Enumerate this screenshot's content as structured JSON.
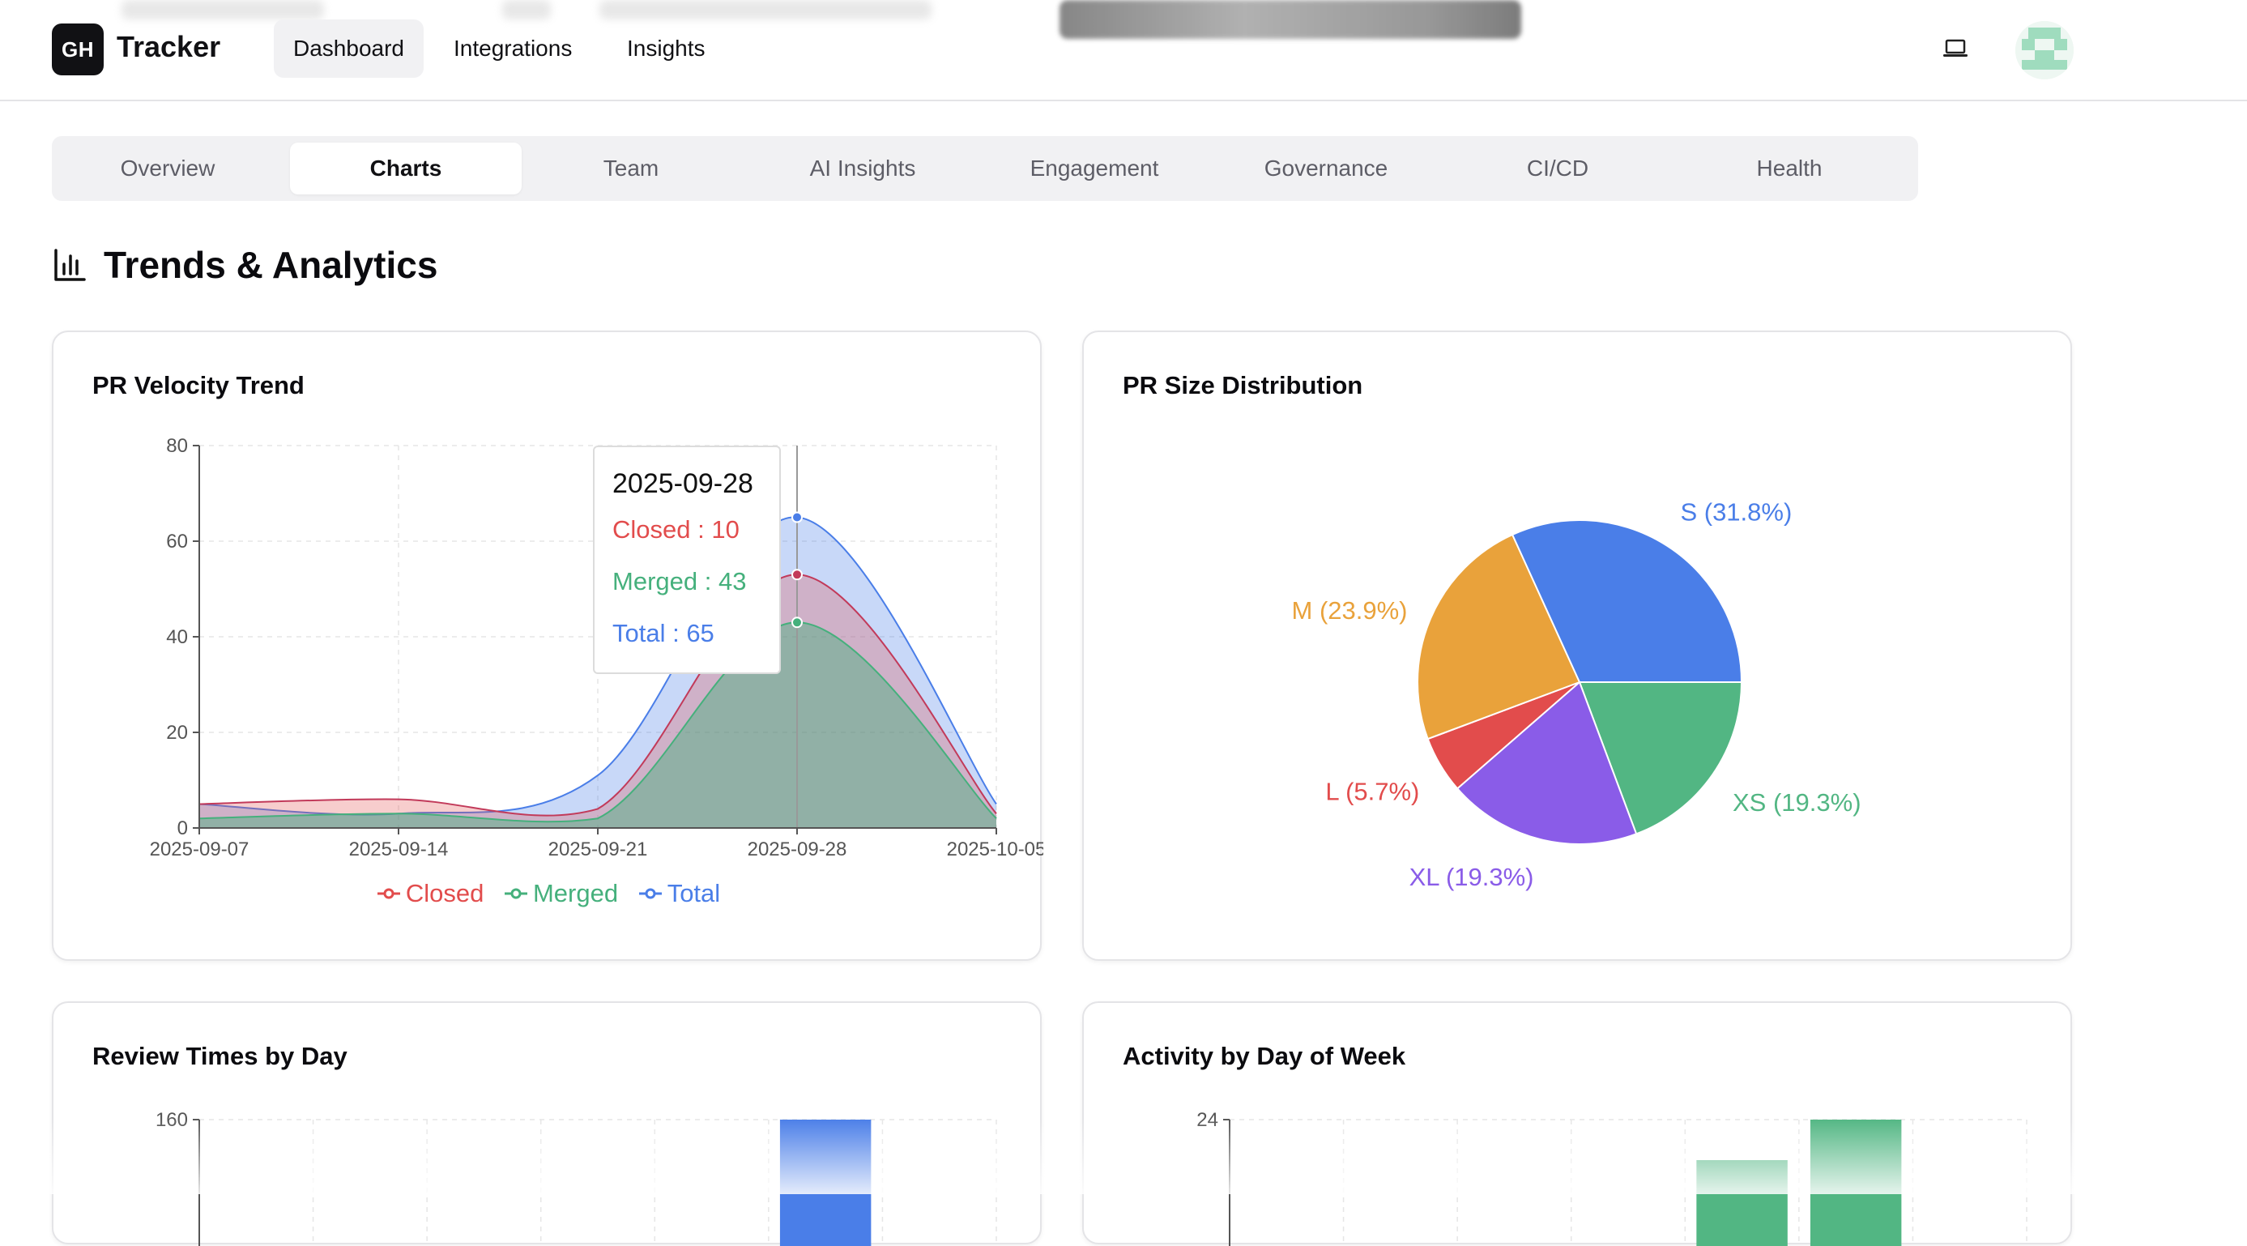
{
  "header": {
    "logo_text": "GH",
    "app_name": "Tracker",
    "nav": [
      {
        "label": "Dashboard",
        "active": true
      },
      {
        "label": "Integrations",
        "active": false
      },
      {
        "label": "Insights",
        "active": false
      }
    ],
    "device_icon": "laptop-icon",
    "avatar_icon": "avatar-pixel-icon"
  },
  "tabs": [
    {
      "label": "Overview",
      "active": false
    },
    {
      "label": "Charts",
      "active": true
    },
    {
      "label": "Team",
      "active": false
    },
    {
      "label": "AI Insights",
      "active": false
    },
    {
      "label": "Engagement",
      "active": false
    },
    {
      "label": "Governance",
      "active": false
    },
    {
      "label": "CI/CD",
      "active": false
    },
    {
      "label": "Health",
      "active": false
    }
  ],
  "section": {
    "title": "Trends & Analytics",
    "icon": "bar-chart-icon"
  },
  "colors": {
    "closed": "#e24c4c",
    "merged": "#45b07c",
    "total": "#4a7ee8",
    "xl": "#8a5ce8",
    "m": "#e9a23b"
  },
  "velocity_card": {
    "title": "PR Velocity Trend"
  },
  "size_card": {
    "title": "PR Size Distribution"
  },
  "review_card": {
    "title": "Review Times by Day"
  },
  "activity_card": {
    "title": "Activity by Day of Week"
  },
  "tooltip": {
    "date": "2025-09-28",
    "closed": "Closed : 10",
    "merged": "Merged : 43",
    "total": "Total : 65"
  },
  "legend": {
    "closed": "Closed",
    "merged": "Merged",
    "total": "Total"
  },
  "chart_data": [
    {
      "type": "area",
      "title": "PR Velocity Trend",
      "x": [
        "2025-09-07",
        "2025-09-14",
        "2025-09-21",
        "2025-09-28",
        "2025-10-05"
      ],
      "x_ticks": [
        "2025-09-07",
        "2025-09-14",
        "2025-09-21",
        "2025-09-28",
        "2025-10-05"
      ],
      "ylim": [
        0,
        80
      ],
      "y_ticks": [
        0,
        20,
        40,
        60,
        80
      ],
      "grid": true,
      "legend_position": "bottom",
      "stacked": false,
      "series": [
        {
          "name": "Total",
          "values": [
            5,
            3,
            11,
            65,
            5
          ]
        },
        {
          "name": "Merged",
          "values": [
            2,
            3,
            2,
            43,
            2
          ]
        },
        {
          "name": "Closed",
          "values": [
            3,
            3,
            2,
            10,
            1
          ]
        }
      ],
      "highlight": {
        "x": "2025-09-28",
        "Closed": 10,
        "Merged": 43,
        "Total": 65
      }
    },
    {
      "type": "pie",
      "title": "PR Size Distribution",
      "categories": [
        "XS",
        "XL",
        "L",
        "M",
        "S"
      ],
      "values": [
        19.3,
        19.3,
        5.7,
        23.9,
        31.8
      ],
      "labels": [
        "XS (19.3%)",
        "XL (19.3%)",
        "L (5.7%)",
        "M (23.9%)",
        "S (31.8%)"
      ],
      "colors": [
        "#52b683",
        "#8a5ce8",
        "#e24c4c",
        "#e9a23b",
        "#4a7ee8"
      ]
    },
    {
      "type": "bar",
      "title": "Review Times by Day",
      "y_ticks_visible": [
        160
      ],
      "values_visible": [
        {
          "category_index": 5,
          "value": 160
        }
      ],
      "color": "#4a7ee8"
    },
    {
      "type": "bar",
      "title": "Activity by Day of Week",
      "y_ticks_visible": [
        24
      ],
      "values_visible": [
        {
          "category_index": 4,
          "value": 22
        },
        {
          "category_index": 5,
          "value": 24
        }
      ],
      "color": "#52b683"
    }
  ]
}
